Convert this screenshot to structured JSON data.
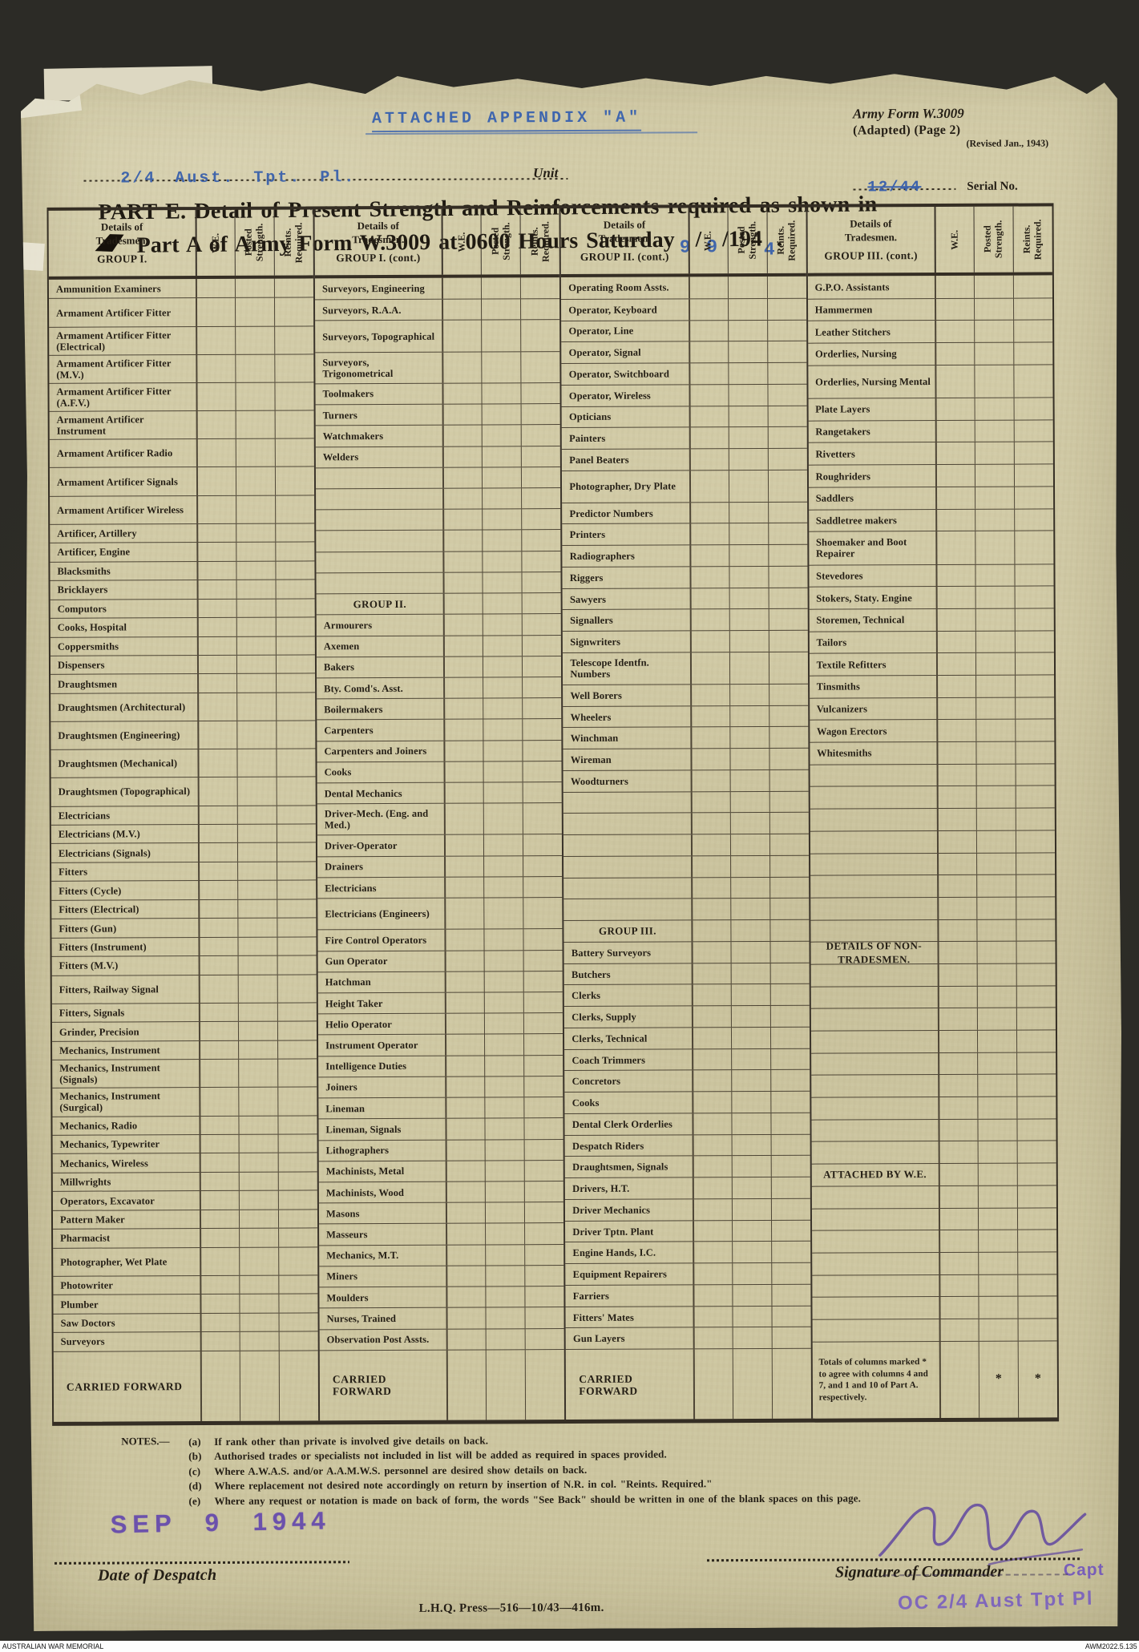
{
  "colors": {
    "paper": "#d1caa5",
    "ink": "#241e15",
    "rule": "#3a332a",
    "typed_blue": "#4166ab",
    "stamp_purple": "#6b4fae",
    "mat": "#2c2b26"
  },
  "header": {
    "appendix_title": "ATTACHED APPENDIX \"A\"",
    "unit_value": "2/4 Aust. Tpt. Pl.",
    "unit_label": "Unit",
    "form_name": "Army Form W.3009",
    "form_sub": "(Adapted)  (Page 2)",
    "form_rev": "(Revised Jan., 1943)",
    "serial_value": "12/44",
    "serial_label": "Serial No.",
    "title_line1": "PART E.  Detail of Present Strength and Reinforcements required as shown in",
    "title2_pre": "Part A of Army Form W.3009 at 0600 Hours Saturday",
    "date_day": "9",
    "date_sep1": "/",
    "date_month": "9",
    "date_year_printed": "/194",
    "date_year_written": "4",
    "title_end": "."
  },
  "table": {
    "col_headers": {
      "details": "Details of Tradesmen.",
      "we": "W.E.",
      "posted": "Posted\nStrength.",
      "reints": "Reints.\nRequired."
    },
    "groups": [
      {
        "heading": "GROUP I.",
        "rows": [
          {
            "t": "Ammunition Examiners"
          },
          {
            "t": "Armament Artificer Fitter",
            "h": 2
          },
          {
            "t": "Armament Artificer Fitter (Electrical)",
            "h": 2
          },
          {
            "t": "Armament Artificer Fitter (M.V.)",
            "h": 2
          },
          {
            "t": "Armament Artificer Fitter (A.F.V.)",
            "h": 2
          },
          {
            "t": "Armament Artificer Instrument",
            "h": 2
          },
          {
            "t": "Armament Artificer Radio",
            "h": 2
          },
          {
            "t": "Armament Artificer Signals",
            "h": 2
          },
          {
            "t": "Armament Artificer Wireless",
            "h": 2
          },
          {
            "t": "Artificer, Artillery"
          },
          {
            "t": "Artificer, Engine"
          },
          {
            "t": "Blacksmiths"
          },
          {
            "t": "Bricklayers"
          },
          {
            "t": "Computors"
          },
          {
            "t": "Cooks, Hospital"
          },
          {
            "t": "Coppersmiths"
          },
          {
            "t": "Dispensers"
          },
          {
            "t": "Draughtsmen"
          },
          {
            "t": "Draughtsmen (Architectural)",
            "h": 2
          },
          {
            "t": "Draughtsmen (Engineering)",
            "h": 2
          },
          {
            "t": "Draughtsmen (Mechanical)",
            "h": 2
          },
          {
            "t": "Draughtsmen (Topographical)",
            "h": 2
          },
          {
            "t": "Electricians"
          },
          {
            "t": "Electricians (M.V.)"
          },
          {
            "t": "Electricians (Signals)"
          },
          {
            "t": "Fitters"
          },
          {
            "t": "Fitters (Cycle)"
          },
          {
            "t": "Fitters (Electrical)"
          },
          {
            "t": "Fitters (Gun)"
          },
          {
            "t": "Fitters (Instrument)"
          },
          {
            "t": "Fitters (M.V.)"
          },
          {
            "t": "Fitters, Railway Signal",
            "h": 2
          },
          {
            "t": "Fitters, Signals"
          },
          {
            "t": "Grinder, Precision"
          },
          {
            "t": "Mechanics, Instrument"
          },
          {
            "t": "Mechanics, Instrument (Signals)",
            "h": 2
          },
          {
            "t": "Mechanics, Instrument (Surgical)",
            "h": 2
          },
          {
            "t": "Mechanics, Radio"
          },
          {
            "t": "Mechanics, Typewriter"
          },
          {
            "t": "Mechanics, Wireless"
          },
          {
            "t": "Millwrights"
          },
          {
            "t": "Operators, Excavator"
          },
          {
            "t": "Pattern Maker"
          },
          {
            "t": "Pharmacist"
          },
          {
            "t": "Photographer, Wet Plate",
            "h": 2
          },
          {
            "t": "Photowriter"
          },
          {
            "t": "Plumber"
          },
          {
            "t": "Saw Doctors"
          },
          {
            "t": "Surveyors"
          },
          {
            "cf": true,
            "t": "CARRIED FORWARD"
          }
        ]
      },
      {
        "heading": "GROUP I. (cont.)",
        "rows": [
          {
            "t": "Surveyors, Engineering"
          },
          {
            "t": "Surveyors, R.A.A."
          },
          {
            "t": "Surveyors, Topographical",
            "h": 2
          },
          {
            "t": "Surveyors, Trigonometrical",
            "h": 2
          },
          {
            "t": "Toolmakers"
          },
          {
            "t": "Turners"
          },
          {
            "t": "Watchmakers"
          },
          {
            "t": "Welders"
          },
          {},
          {},
          {},
          {},
          {},
          {},
          {
            "head": "GROUP II."
          },
          {
            "t": "Armourers"
          },
          {
            "t": "Axemen"
          },
          {
            "t": "Bakers"
          },
          {
            "t": "Bty. Comd's. Asst."
          },
          {
            "t": "Boilermakers"
          },
          {
            "t": "Carpenters"
          },
          {
            "t": "Carpenters and Joiners"
          },
          {
            "t": "Cooks"
          },
          {
            "t": "Dental Mechanics"
          },
          {
            "t": "Driver-Mech. (Eng. and Med.)",
            "h": 2
          },
          {
            "t": "Driver-Operator"
          },
          {
            "t": "Drainers"
          },
          {
            "t": "Electricians"
          },
          {
            "t": "Electricians (Engineers)",
            "h": 2
          },
          {
            "t": "Fire Control Operators"
          },
          {
            "t": "Gun Operator"
          },
          {
            "t": "Hatchman"
          },
          {
            "t": "Height Taker"
          },
          {
            "t": "Helio Operator"
          },
          {
            "t": "Instrument Operator"
          },
          {
            "t": "Intelligence Duties"
          },
          {
            "t": "Joiners"
          },
          {
            "t": "Lineman"
          },
          {
            "t": "Lineman, Signals"
          },
          {
            "t": "Lithographers"
          },
          {
            "t": "Machinists, Metal"
          },
          {
            "t": "Machinists, Wood"
          },
          {
            "t": "Masons"
          },
          {
            "t": "Masseurs"
          },
          {
            "t": "Mechanics, M.T."
          },
          {
            "t": "Miners"
          },
          {
            "t": "Moulders"
          },
          {
            "t": "Nurses, Trained"
          },
          {
            "t": "Observation Post Assts."
          },
          {
            "cf": true,
            "t": "CARRIED FORWARD"
          }
        ]
      },
      {
        "heading": "GROUP II. (cont.)",
        "rows": [
          {
            "t": "Operating Room Assts."
          },
          {
            "t": "Operator, Keyboard"
          },
          {
            "t": "Operator, Line"
          },
          {
            "t": "Operator, Signal"
          },
          {
            "t": "Operator, Switchboard"
          },
          {
            "t": "Operator, Wireless"
          },
          {
            "t": "Opticians"
          },
          {
            "t": "Painters"
          },
          {
            "t": "Panel Beaters"
          },
          {
            "t": "Photographer, Dry Plate",
            "h": 2
          },
          {
            "t": "Predictor Numbers"
          },
          {
            "t": "Printers"
          },
          {
            "t": "Radiographers"
          },
          {
            "t": "Riggers"
          },
          {
            "t": "Sawyers"
          },
          {
            "t": "Signallers"
          },
          {
            "t": "Signwriters"
          },
          {
            "t": "Telescope Identfn. Numbers",
            "h": 2
          },
          {
            "t": "Well Borers"
          },
          {
            "t": "Wheelers"
          },
          {
            "t": "Winchman"
          },
          {
            "t": "Wireman"
          },
          {
            "t": "Woodturners"
          },
          {},
          {},
          {},
          {},
          {},
          {},
          {
            "head": "GROUP III."
          },
          {
            "t": "Battery Surveyors"
          },
          {
            "t": "Butchers"
          },
          {
            "t": "Clerks"
          },
          {
            "t": "Clerks, Supply"
          },
          {
            "t": "Clerks, Technical"
          },
          {
            "t": "Coach Trimmers"
          },
          {
            "t": "Concretors"
          },
          {
            "t": "Cooks"
          },
          {
            "t": "Dental Clerk Orderlies"
          },
          {
            "t": "Despatch Riders"
          },
          {
            "t": "Draughtsmen, Signals"
          },
          {
            "t": "Drivers, H.T."
          },
          {
            "t": "Driver Mechanics"
          },
          {
            "t": "Driver Tptn. Plant"
          },
          {
            "t": "Engine Hands, I.C."
          },
          {
            "t": "Equipment Repairers"
          },
          {
            "t": "Farriers"
          },
          {
            "t": "Fitters' Mates"
          },
          {
            "t": "Gun Layers"
          },
          {
            "cf": true,
            "t": "CARRIED FORWARD"
          }
        ]
      },
      {
        "heading": "GROUP III. (cont.)",
        "rows": [
          {
            "t": "G.P.O. Assistants"
          },
          {
            "t": "Hammermen"
          },
          {
            "t": "Leather Stitchers"
          },
          {
            "t": "Orderlies, Nursing"
          },
          {
            "t": "Orderlies, Nursing Mental",
            "h": 2
          },
          {
            "t": "Plate Layers"
          },
          {
            "t": "Rangetakers"
          },
          {
            "t": "Rivetters"
          },
          {
            "t": "Roughriders"
          },
          {
            "t": "Saddlers"
          },
          {
            "t": "Saddletree makers"
          },
          {
            "t": "Shoemaker and Boot Repairer",
            "h": 2
          },
          {
            "t": "Stevedores"
          },
          {
            "t": "Stokers, Staty. Engine"
          },
          {
            "t": "Storemen, Technical"
          },
          {
            "t": "Tailors"
          },
          {
            "t": "Textile Refitters"
          },
          {
            "t": "Tinsmiths"
          },
          {
            "t": "Vulcanizers"
          },
          {
            "t": "Wagon Erectors"
          },
          {
            "t": "Whitesmiths"
          },
          {},
          {},
          {},
          {},
          {},
          {},
          {},
          {},
          {
            "head": "DETAILS OF NON-TRADESMEN."
          },
          {},
          {},
          {},
          {},
          {},
          {},
          {},
          {},
          {},
          {
            "head": "ATTACHED BY W.E."
          },
          {},
          {},
          {},
          {},
          {},
          {},
          {},
          {
            "totals": true,
            "t": "Totals of columns marked  *  to agree with columns 4 and 7, and 1 and 10 of Part A.  respectively.",
            "star1": "*",
            "star2": "*"
          }
        ]
      }
    ]
  },
  "notes": {
    "label": "NOTES.—",
    "items": [
      {
        "tag": "(a)",
        "text": "If rank other than private is involved give details on back."
      },
      {
        "tag": "(b)",
        "text": "Authorised trades or specialists not included in list will be added as required in spaces provided."
      },
      {
        "tag": "(c)",
        "text": "Where A.W.A.S. and/or A.A.M.W.S. personnel are desired show details on back."
      },
      {
        "tag": "(d)",
        "text": "Where replacement not desired note accordingly on return by insertion of N.R. in col. \"Reints. Required.\""
      },
      {
        "tag": "(e)",
        "text": "Where any request or notation is made on back of form, the words \"See Back\" should be written in one of the blank spaces on this page."
      }
    ]
  },
  "footer": {
    "date_stamp": "SEP 9 1944",
    "date_label": "Date of Despatch",
    "sig_label": "Signature of Commander",
    "sig_rank_stamp": "Capt",
    "sig_unit_stamp": "OC 2/4 Aust Tpt Pl",
    "press_line": "L.H.Q.  Press—516—10/43—416m."
  },
  "archive": {
    "left": "AUSTRALIAN WAR MEMORIAL",
    "right": "AWM2022.5.135"
  }
}
